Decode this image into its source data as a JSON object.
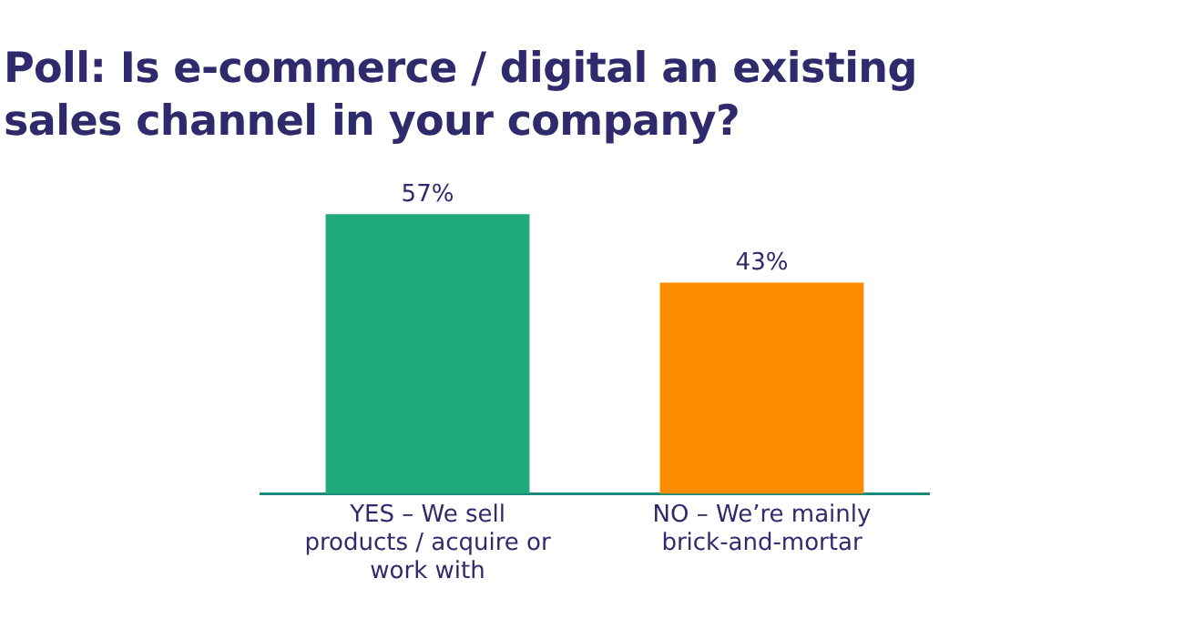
{
  "chart_data": {
    "type": "bar",
    "title": "Poll: Is e-commerce / digital an existing sales channel in your company?",
    "categories": [
      "YES – We sell products / acquire or work with",
      "NO – We’re mainly brick-and-mortar"
    ],
    "values": [
      57,
      43
    ],
    "colors": [
      "#20a97b",
      "#fb8c00"
    ],
    "value_labels": [
      "57%",
      "43%"
    ],
    "grid": false,
    "legend": false
  }
}
